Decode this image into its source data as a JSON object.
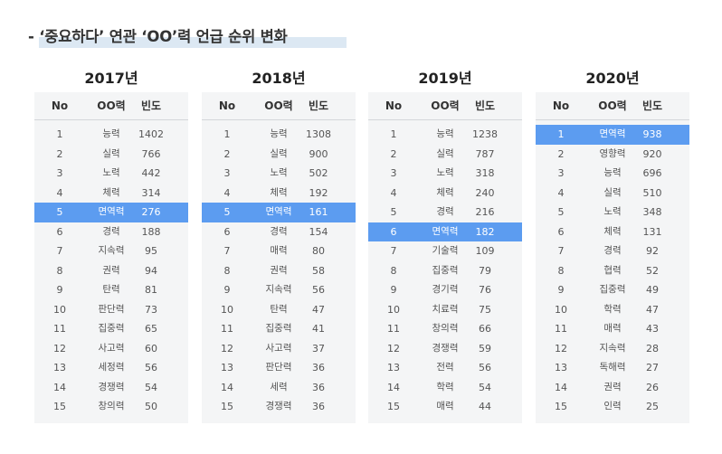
{
  "title": "- ‘중요하다’ 연관 ‘OO’력 언급 순위 변화",
  "headers": {
    "no": "No",
    "name": "OO력",
    "freq": "빈도"
  },
  "panels": [
    {
      "year": "2017년",
      "highlight_rank": 5,
      "rows": [
        {
          "rank": "1",
          "name": "능력",
          "freq": "1402"
        },
        {
          "rank": "2",
          "name": "실력",
          "freq": "766"
        },
        {
          "rank": "3",
          "name": "노력",
          "freq": "442"
        },
        {
          "rank": "4",
          "name": "체력",
          "freq": "314"
        },
        {
          "rank": "5",
          "name": "면역력",
          "freq": "276"
        },
        {
          "rank": "6",
          "name": "경력",
          "freq": "188"
        },
        {
          "rank": "7",
          "name": "지속력",
          "freq": "95"
        },
        {
          "rank": "8",
          "name": "권력",
          "freq": "94"
        },
        {
          "rank": "9",
          "name": "탄력",
          "freq": "81"
        },
        {
          "rank": "10",
          "name": "판단력",
          "freq": "73"
        },
        {
          "rank": "11",
          "name": "집중력",
          "freq": "65"
        },
        {
          "rank": "12",
          "name": "사고력",
          "freq": "60"
        },
        {
          "rank": "13",
          "name": "세정력",
          "freq": "56"
        },
        {
          "rank": "14",
          "name": "경쟁력",
          "freq": "54"
        },
        {
          "rank": "15",
          "name": "창의력",
          "freq": "50"
        }
      ]
    },
    {
      "year": "2018년",
      "highlight_rank": 5,
      "rows": [
        {
          "rank": "1",
          "name": "능력",
          "freq": "1308"
        },
        {
          "rank": "2",
          "name": "실력",
          "freq": "900"
        },
        {
          "rank": "3",
          "name": "노력",
          "freq": "502"
        },
        {
          "rank": "4",
          "name": "체력",
          "freq": "192"
        },
        {
          "rank": "5",
          "name": "면역력",
          "freq": "161"
        },
        {
          "rank": "6",
          "name": "경력",
          "freq": "154"
        },
        {
          "rank": "7",
          "name": "매력",
          "freq": "80"
        },
        {
          "rank": "8",
          "name": "권력",
          "freq": "58"
        },
        {
          "rank": "9",
          "name": "지속력",
          "freq": "56"
        },
        {
          "rank": "10",
          "name": "탄력",
          "freq": "47"
        },
        {
          "rank": "11",
          "name": "집중력",
          "freq": "41"
        },
        {
          "rank": "12",
          "name": "사고력",
          "freq": "37"
        },
        {
          "rank": "13",
          "name": "판단력",
          "freq": "36"
        },
        {
          "rank": "14",
          "name": "세력",
          "freq": "36"
        },
        {
          "rank": "15",
          "name": "경쟁력",
          "freq": "36"
        }
      ]
    },
    {
      "year": "2019년",
      "highlight_rank": 6,
      "rows": [
        {
          "rank": "1",
          "name": "능력",
          "freq": "1238"
        },
        {
          "rank": "2",
          "name": "실력",
          "freq": "787"
        },
        {
          "rank": "3",
          "name": "노력",
          "freq": "318"
        },
        {
          "rank": "4",
          "name": "체력",
          "freq": "240"
        },
        {
          "rank": "5",
          "name": "경력",
          "freq": "216"
        },
        {
          "rank": "6",
          "name": "면역력",
          "freq": "182"
        },
        {
          "rank": "7",
          "name": "기술력",
          "freq": "109"
        },
        {
          "rank": "8",
          "name": "집중력",
          "freq": "79"
        },
        {
          "rank": "9",
          "name": "경기력",
          "freq": "76"
        },
        {
          "rank": "10",
          "name": "치료력",
          "freq": "75"
        },
        {
          "rank": "11",
          "name": "창의력",
          "freq": "66"
        },
        {
          "rank": "12",
          "name": "경쟁력",
          "freq": "59"
        },
        {
          "rank": "13",
          "name": "전력",
          "freq": "56"
        },
        {
          "rank": "14",
          "name": "학력",
          "freq": "54"
        },
        {
          "rank": "15",
          "name": "매력",
          "freq": "44"
        }
      ]
    },
    {
      "year": "2020년",
      "highlight_rank": 1,
      "rows": [
        {
          "rank": "1",
          "name": "면역력",
          "freq": "938"
        },
        {
          "rank": "2",
          "name": "영향력",
          "freq": "920"
        },
        {
          "rank": "3",
          "name": "능력",
          "freq": "696"
        },
        {
          "rank": "4",
          "name": "실력",
          "freq": "510"
        },
        {
          "rank": "5",
          "name": "노력",
          "freq": "348"
        },
        {
          "rank": "6",
          "name": "체력",
          "freq": "131"
        },
        {
          "rank": "7",
          "name": "경력",
          "freq": "92"
        },
        {
          "rank": "8",
          "name": "협력",
          "freq": "52"
        },
        {
          "rank": "9",
          "name": "집중력",
          "freq": "49"
        },
        {
          "rank": "10",
          "name": "학력",
          "freq": "47"
        },
        {
          "rank": "11",
          "name": "매력",
          "freq": "43"
        },
        {
          "rank": "12",
          "name": "지속력",
          "freq": "28"
        },
        {
          "rank": "13",
          "name": "독해력",
          "freq": "27"
        },
        {
          "rank": "14",
          "name": "권력",
          "freq": "26"
        },
        {
          "rank": "15",
          "name": "인력",
          "freq": "25"
        }
      ]
    }
  ],
  "colors": {
    "highlight": "#5c9cf0",
    "panel_bg": "#f4f5f6",
    "title_marker": "#dce8f3"
  }
}
